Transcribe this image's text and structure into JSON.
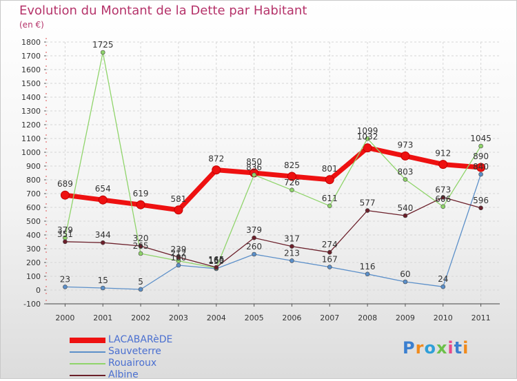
{
  "title": "Evolution du Montant de la Dette par Habitant",
  "subtitle": "(en €)",
  "logo": {
    "text": "Proxiti",
    "colors": [
      "#3a7fd0",
      "#f08a1c",
      "#2f9fd8",
      "#6cc04a",
      "#e84a8a",
      "#3a7fd0",
      "#f08a1c"
    ]
  },
  "chart_data": {
    "type": "line",
    "x": [
      "2000",
      "2001",
      "2002",
      "2003",
      "2004",
      "2005",
      "2006",
      "2007",
      "2008",
      "2009",
      "2010",
      "2011"
    ],
    "ylim": [
      -100,
      1800
    ],
    "yticks": [
      -100,
      0,
      100,
      200,
      300,
      400,
      500,
      600,
      700,
      800,
      900,
      1000,
      1100,
      1200,
      1300,
      1400,
      1500,
      1600,
      1700,
      1800
    ],
    "grid": true,
    "legend_position": "bottom-left",
    "series": [
      {
        "name": "LACABARèDE",
        "color": "#ee1111",
        "width": 7,
        "marker": 6,
        "values": [
          689,
          654,
          619,
          581,
          872,
          850,
          825,
          801,
          1032,
          973,
          912,
          890
        ],
        "labels": [
          "689",
          "654",
          "619",
          "581",
          "872",
          "850",
          "825",
          "801",
          "1032",
          "973",
          "912",
          "890"
        ]
      },
      {
        "name": "Sauveterre",
        "color": "#5b8fc9",
        "width": 1.3,
        "marker": 3,
        "values": [
          23,
          15,
          5,
          180,
          155,
          260,
          213,
          167,
          116,
          60,
          24,
          840
        ],
        "labels": [
          "23",
          "15",
          "5",
          "180",
          "155",
          "260",
          "213",
          "167",
          "116",
          "60",
          "24",
          "840"
        ]
      },
      {
        "name": "Rouairoux",
        "color": "#8fd46a",
        "width": 1.3,
        "marker": 3,
        "values": [
          379,
          1725,
          265,
          212,
          160,
          836,
          726,
          611,
          1099,
          803,
          606,
          1045
        ],
        "labels": [
          "379",
          "1725",
          "265",
          "212",
          "160",
          "836",
          "726",
          "611",
          "1099",
          "803",
          "606",
          "1045"
        ]
      },
      {
        "name": "Albine",
        "color": "#6b1f2a",
        "width": 1.3,
        "marker": 3,
        "values": [
          351,
          344,
          320,
          239,
          165,
          379,
          317,
          274,
          577,
          540,
          673,
          596
        ],
        "labels": [
          "351",
          "344",
          "320",
          "239",
          "165",
          "379",
          "317",
          "274",
          "577",
          "540",
          "673",
          "596"
        ]
      }
    ]
  }
}
